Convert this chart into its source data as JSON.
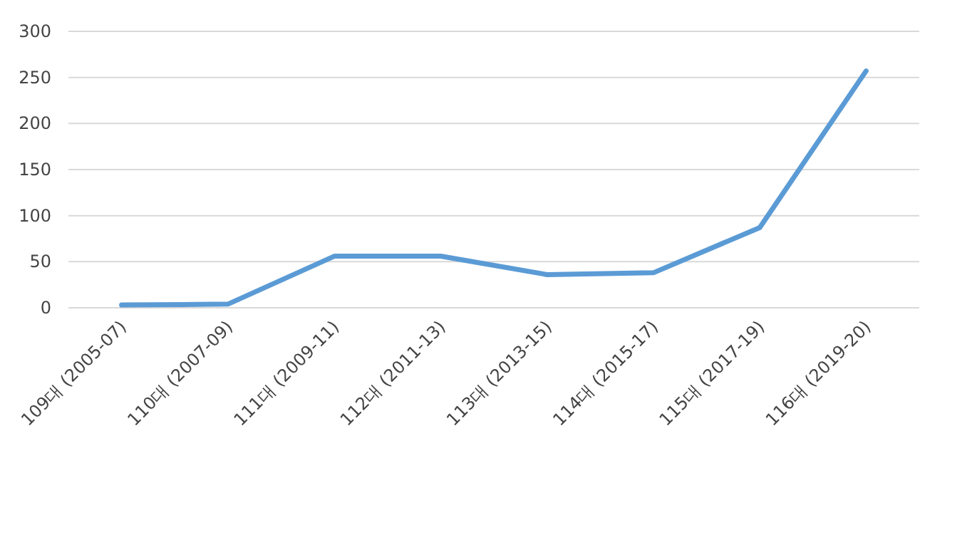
{
  "chart_data": {
    "type": "line",
    "categories": [
      "109대 (2005-07)",
      "110대 (2007-09)",
      "111대 (2009-11)",
      "112대 (2011-13)",
      "113대 (2013-15)",
      "114대 (2015-17)",
      "115대 (2017-19)",
      "116대 (2019-20)"
    ],
    "series": [
      {
        "color": "#5b9bd5",
        "values": [
          3,
          4,
          56,
          56,
          36,
          38,
          87,
          257
        ]
      }
    ],
    "ylim": [
      0,
      300
    ],
    "yticks": [
      0,
      50,
      100,
      150,
      200,
      250,
      300
    ],
    "grid": "y",
    "marker": "none",
    "line_style": "solid"
  }
}
